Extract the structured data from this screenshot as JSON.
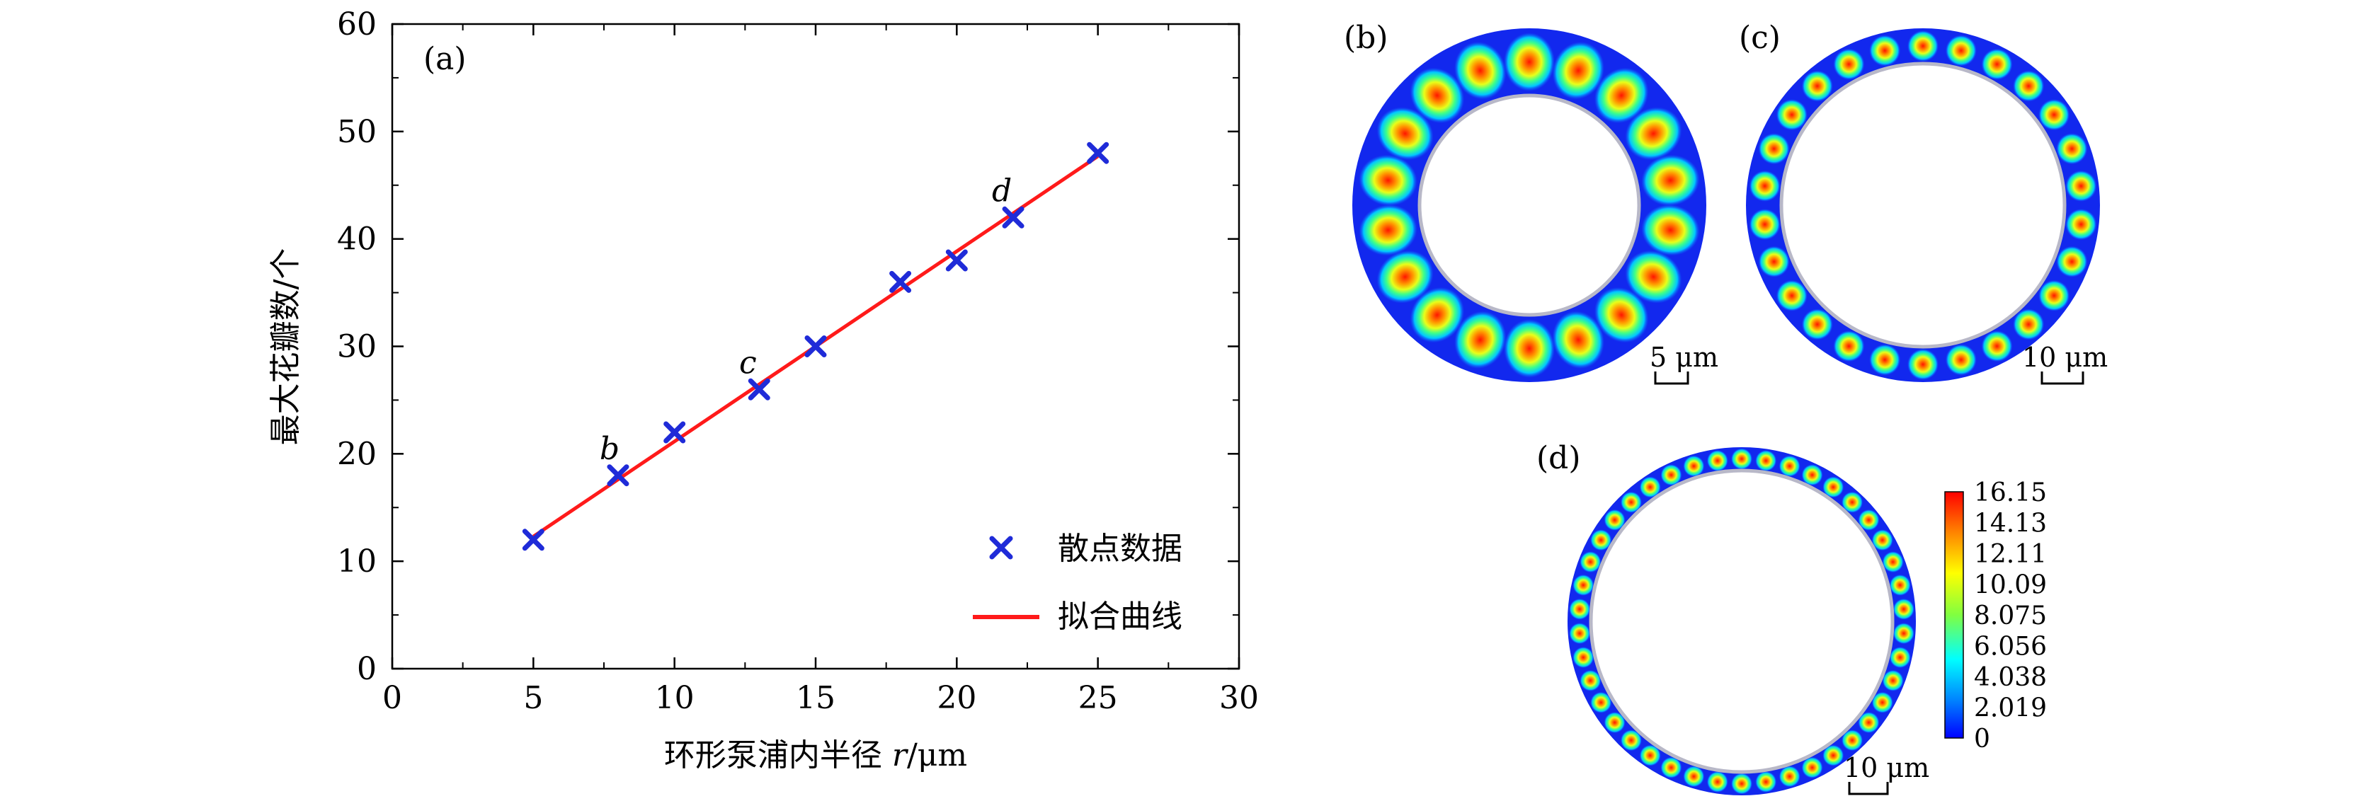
{
  "figure": {
    "panel_a": {
      "label": "(a)",
      "chart_data": {
        "type": "scatter",
        "xlabel_cn": "环形泵浦内半径 ",
        "xlabel_var": "r",
        "xlabel_unit": "/μm",
        "ylabel": "最大花瓣数/个",
        "xlim": [
          0,
          30
        ],
        "ylim": [
          0,
          60
        ],
        "x_ticks": [
          0,
          5,
          10,
          15,
          20,
          25,
          30
        ],
        "y_ticks": [
          0,
          10,
          20,
          30,
          40,
          50,
          60
        ],
        "grid": false,
        "legend_position": "bottom-right",
        "series": [
          {
            "name": "散点数据",
            "kind": "scatter",
            "marker": "x",
            "color": "#1f2bd8",
            "x": [
              5,
              8,
              10,
              13,
              15,
              18,
              20,
              22,
              25
            ],
            "y": [
              12,
              18,
              22,
              26,
              30,
              36,
              38,
              42,
              48
            ]
          },
          {
            "name": "拟合曲线",
            "kind": "line",
            "color": "#ff1a1a",
            "x": [
              5,
              25
            ],
            "y": [
              12.3,
              47.7
            ]
          }
        ],
        "annotations": [
          {
            "text": "b",
            "x": 7.7,
            "y": 19.5
          },
          {
            "text": "c",
            "x": 12.6,
            "y": 27.5
          },
          {
            "text": "d",
            "x": 21.6,
            "y": 43.5
          }
        ]
      }
    },
    "panel_b": {
      "label": "(b)",
      "lobes": 18,
      "scale_label": "5 μm"
    },
    "panel_c": {
      "label": "(c)",
      "lobes": 26,
      "scale_label": "10 μm"
    },
    "panel_d": {
      "label": "(d)",
      "lobes": 42,
      "scale_label": "10 μm"
    },
    "colorbar": {
      "ticks": [
        "16.15",
        "14.13",
        "12.11",
        "10.09",
        "8.075",
        "6.056",
        "4.038",
        "2.019",
        "0"
      ],
      "colors": [
        "#ff0000",
        "#ff8000",
        "#ffff00",
        "#80ff40",
        "#00ffff",
        "#0080ff",
        "#0000ff"
      ]
    }
  }
}
